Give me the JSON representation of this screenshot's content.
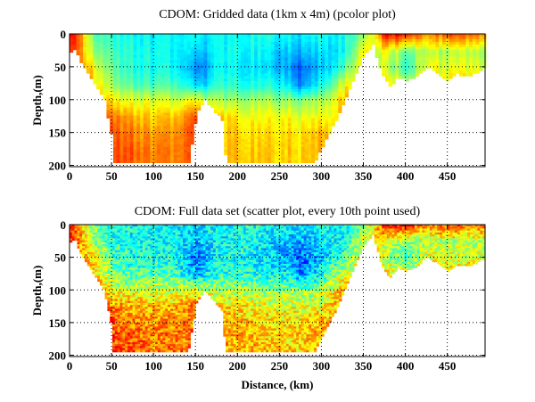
{
  "chart_data": [
    {
      "type": "heatmap",
      "title": "CDOM: Gridded data (1km x 4m) (pcolor plot)",
      "xlabel": "",
      "ylabel": "Depth,(m)",
      "xlim": [
        0,
        495
      ],
      "ylim": [
        202,
        0
      ],
      "xticks": [
        0,
        50,
        100,
        150,
        200,
        250,
        300,
        350,
        400,
        450
      ],
      "yticks": [
        0,
        50,
        100,
        150,
        200
      ],
      "grid": true,
      "colormap": "jet",
      "style": "pcolor"
    },
    {
      "type": "heatmap",
      "title": "CDOM: Full data set (scatter plot, every 10th point used)",
      "xlabel": "Distance, (km)",
      "ylabel": "Depth,(m)",
      "xlim": [
        0,
        495
      ],
      "ylim": [
        202,
        0
      ],
      "xticks": [
        0,
        50,
        100,
        150,
        200,
        250,
        300,
        350,
        400,
        450
      ],
      "yticks": [
        0,
        50,
        100,
        150,
        200
      ],
      "grid": true,
      "colormap": "jet",
      "style": "scatter"
    }
  ],
  "field": {
    "x": [
      0,
      25,
      50,
      75,
      100,
      125,
      150,
      175,
      200,
      225,
      250,
      275,
      300,
      325,
      350,
      375,
      400,
      425,
      450,
      475,
      495
    ],
    "depth": [
      0,
      25,
      50,
      75,
      100,
      125,
      150,
      175,
      200
    ],
    "relative_level": [
      [
        0.9,
        0.5,
        0.4,
        0.38,
        0.38,
        0.38,
        0.35,
        0.38,
        0.4,
        0.4,
        0.38,
        0.35,
        0.4,
        0.38,
        0.5,
        0.85,
        0.85,
        0.7,
        0.8,
        0.75,
        0.75
      ],
      [
        0.85,
        0.55,
        0.42,
        0.4,
        0.4,
        0.38,
        0.3,
        0.38,
        0.4,
        0.38,
        0.32,
        0.3,
        0.35,
        0.38,
        0.6,
        0.6,
        0.5,
        0.55,
        0.55,
        0.55,
        0.55
      ],
      [
        0.8,
        0.65,
        0.45,
        0.4,
        0.4,
        0.38,
        0.22,
        0.38,
        0.38,
        0.35,
        0.3,
        0.22,
        0.32,
        0.45,
        0.65,
        0.55,
        0.45,
        0.6,
        0.6,
        0.6,
        0.6
      ],
      [
        0.8,
        0.7,
        0.5,
        0.45,
        0.45,
        0.45,
        0.3,
        0.42,
        0.42,
        0.4,
        0.38,
        0.25,
        0.4,
        0.6,
        0.65,
        0.65,
        0.6,
        0.65,
        0.65,
        0.65,
        0.65
      ],
      [
        0.8,
        0.75,
        0.62,
        0.6,
        0.6,
        0.58,
        0.6,
        0.55,
        0.55,
        0.55,
        0.52,
        0.5,
        0.55,
        0.7,
        0.7,
        0.7,
        0.7,
        0.7,
        0.7,
        0.7,
        0.7
      ],
      [
        0.8,
        0.78,
        0.75,
        0.7,
        0.68,
        0.7,
        0.78,
        0.68,
        0.65,
        0.62,
        0.62,
        0.6,
        0.62,
        0.7,
        0.7,
        0.7,
        0.7,
        0.7,
        0.7,
        0.7,
        0.7
      ],
      [
        0.8,
        0.8,
        0.78,
        0.75,
        0.72,
        0.75,
        0.78,
        0.7,
        0.68,
        0.66,
        0.65,
        0.65,
        0.7,
        0.7,
        0.7,
        0.7,
        0.7,
        0.7,
        0.7,
        0.7,
        0.7
      ],
      [
        0.8,
        0.8,
        0.8,
        0.78,
        0.75,
        0.76,
        0.78,
        0.7,
        0.7,
        0.68,
        0.66,
        0.66,
        0.7,
        0.7,
        0.7,
        0.7,
        0.7,
        0.7,
        0.7,
        0.7,
        0.7
      ],
      [
        0.8,
        0.8,
        0.8,
        0.78,
        0.75,
        0.76,
        0.78,
        0.7,
        0.7,
        0.68,
        0.66,
        0.66,
        0.7,
        0.7,
        0.7,
        0.7,
        0.7,
        0.7,
        0.7,
        0.7,
        0.7
      ]
    ],
    "max_depth_profile": {
      "x": [
        0,
        5,
        10,
        25,
        40,
        48,
        50,
        140,
        150,
        160,
        170,
        180,
        185,
        290,
        300,
        320,
        340,
        350,
        360,
        370,
        380,
        390,
        400,
        410,
        425,
        450,
        460,
        475,
        495
      ],
      "depth": [
        25,
        20,
        40,
        70,
        100,
        150,
        195,
        195,
        120,
        100,
        115,
        130,
        195,
        195,
        170,
        120,
        60,
        30,
        15,
        60,
        80,
        65,
        70,
        65,
        48,
        70,
        60,
        62,
        50
      ]
    }
  }
}
